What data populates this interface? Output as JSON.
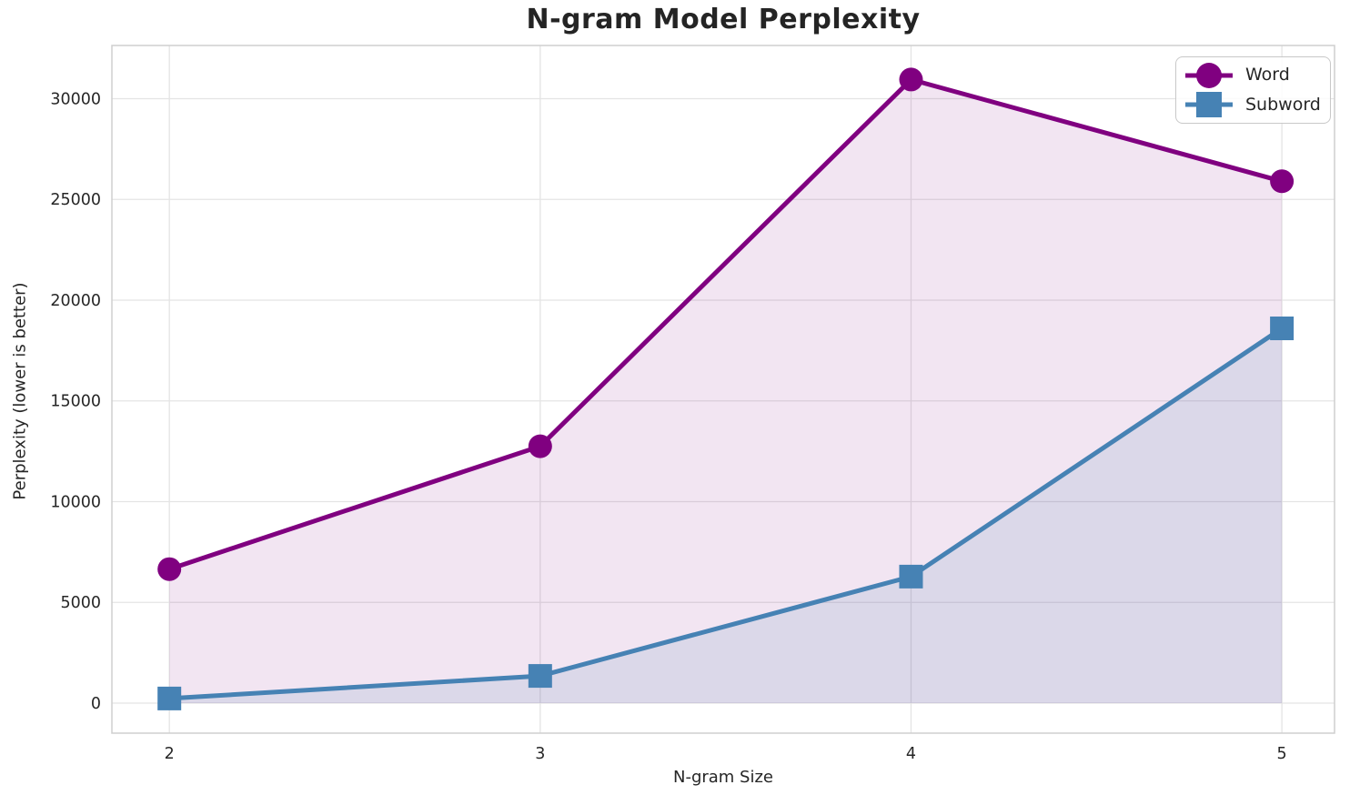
{
  "chart_data": {
    "type": "line",
    "title": "N-gram Model Perplexity",
    "xlabel": "N-gram Size",
    "ylabel": "Perplexity (lower is better)",
    "x": [
      2,
      3,
      4,
      5
    ],
    "series": [
      {
        "name": "Word",
        "values": [
          6650,
          12750,
          30950,
          25900
        ],
        "color": "#800080",
        "marker": "circle",
        "fill_alpha": 0.1
      },
      {
        "name": "Subword",
        "values": [
          230,
          1350,
          6280,
          18600
        ],
        "color": "#4682B4",
        "marker": "square",
        "fill_alpha": 0.13
      }
    ],
    "xticks": [
      2,
      3,
      4,
      5
    ],
    "yticks": [
      0,
      5000,
      10000,
      15000,
      20000,
      25000,
      30000
    ],
    "xlim": [
      1.845,
      5.142
    ],
    "ylim": [
      -1490,
      32640
    ],
    "grid": true,
    "area_fill_baseline": 0,
    "legend_position": "upper right",
    "grid_color": "#e4e4e4",
    "spine_color": "#cfcfcf",
    "tick_color": "#262626"
  }
}
